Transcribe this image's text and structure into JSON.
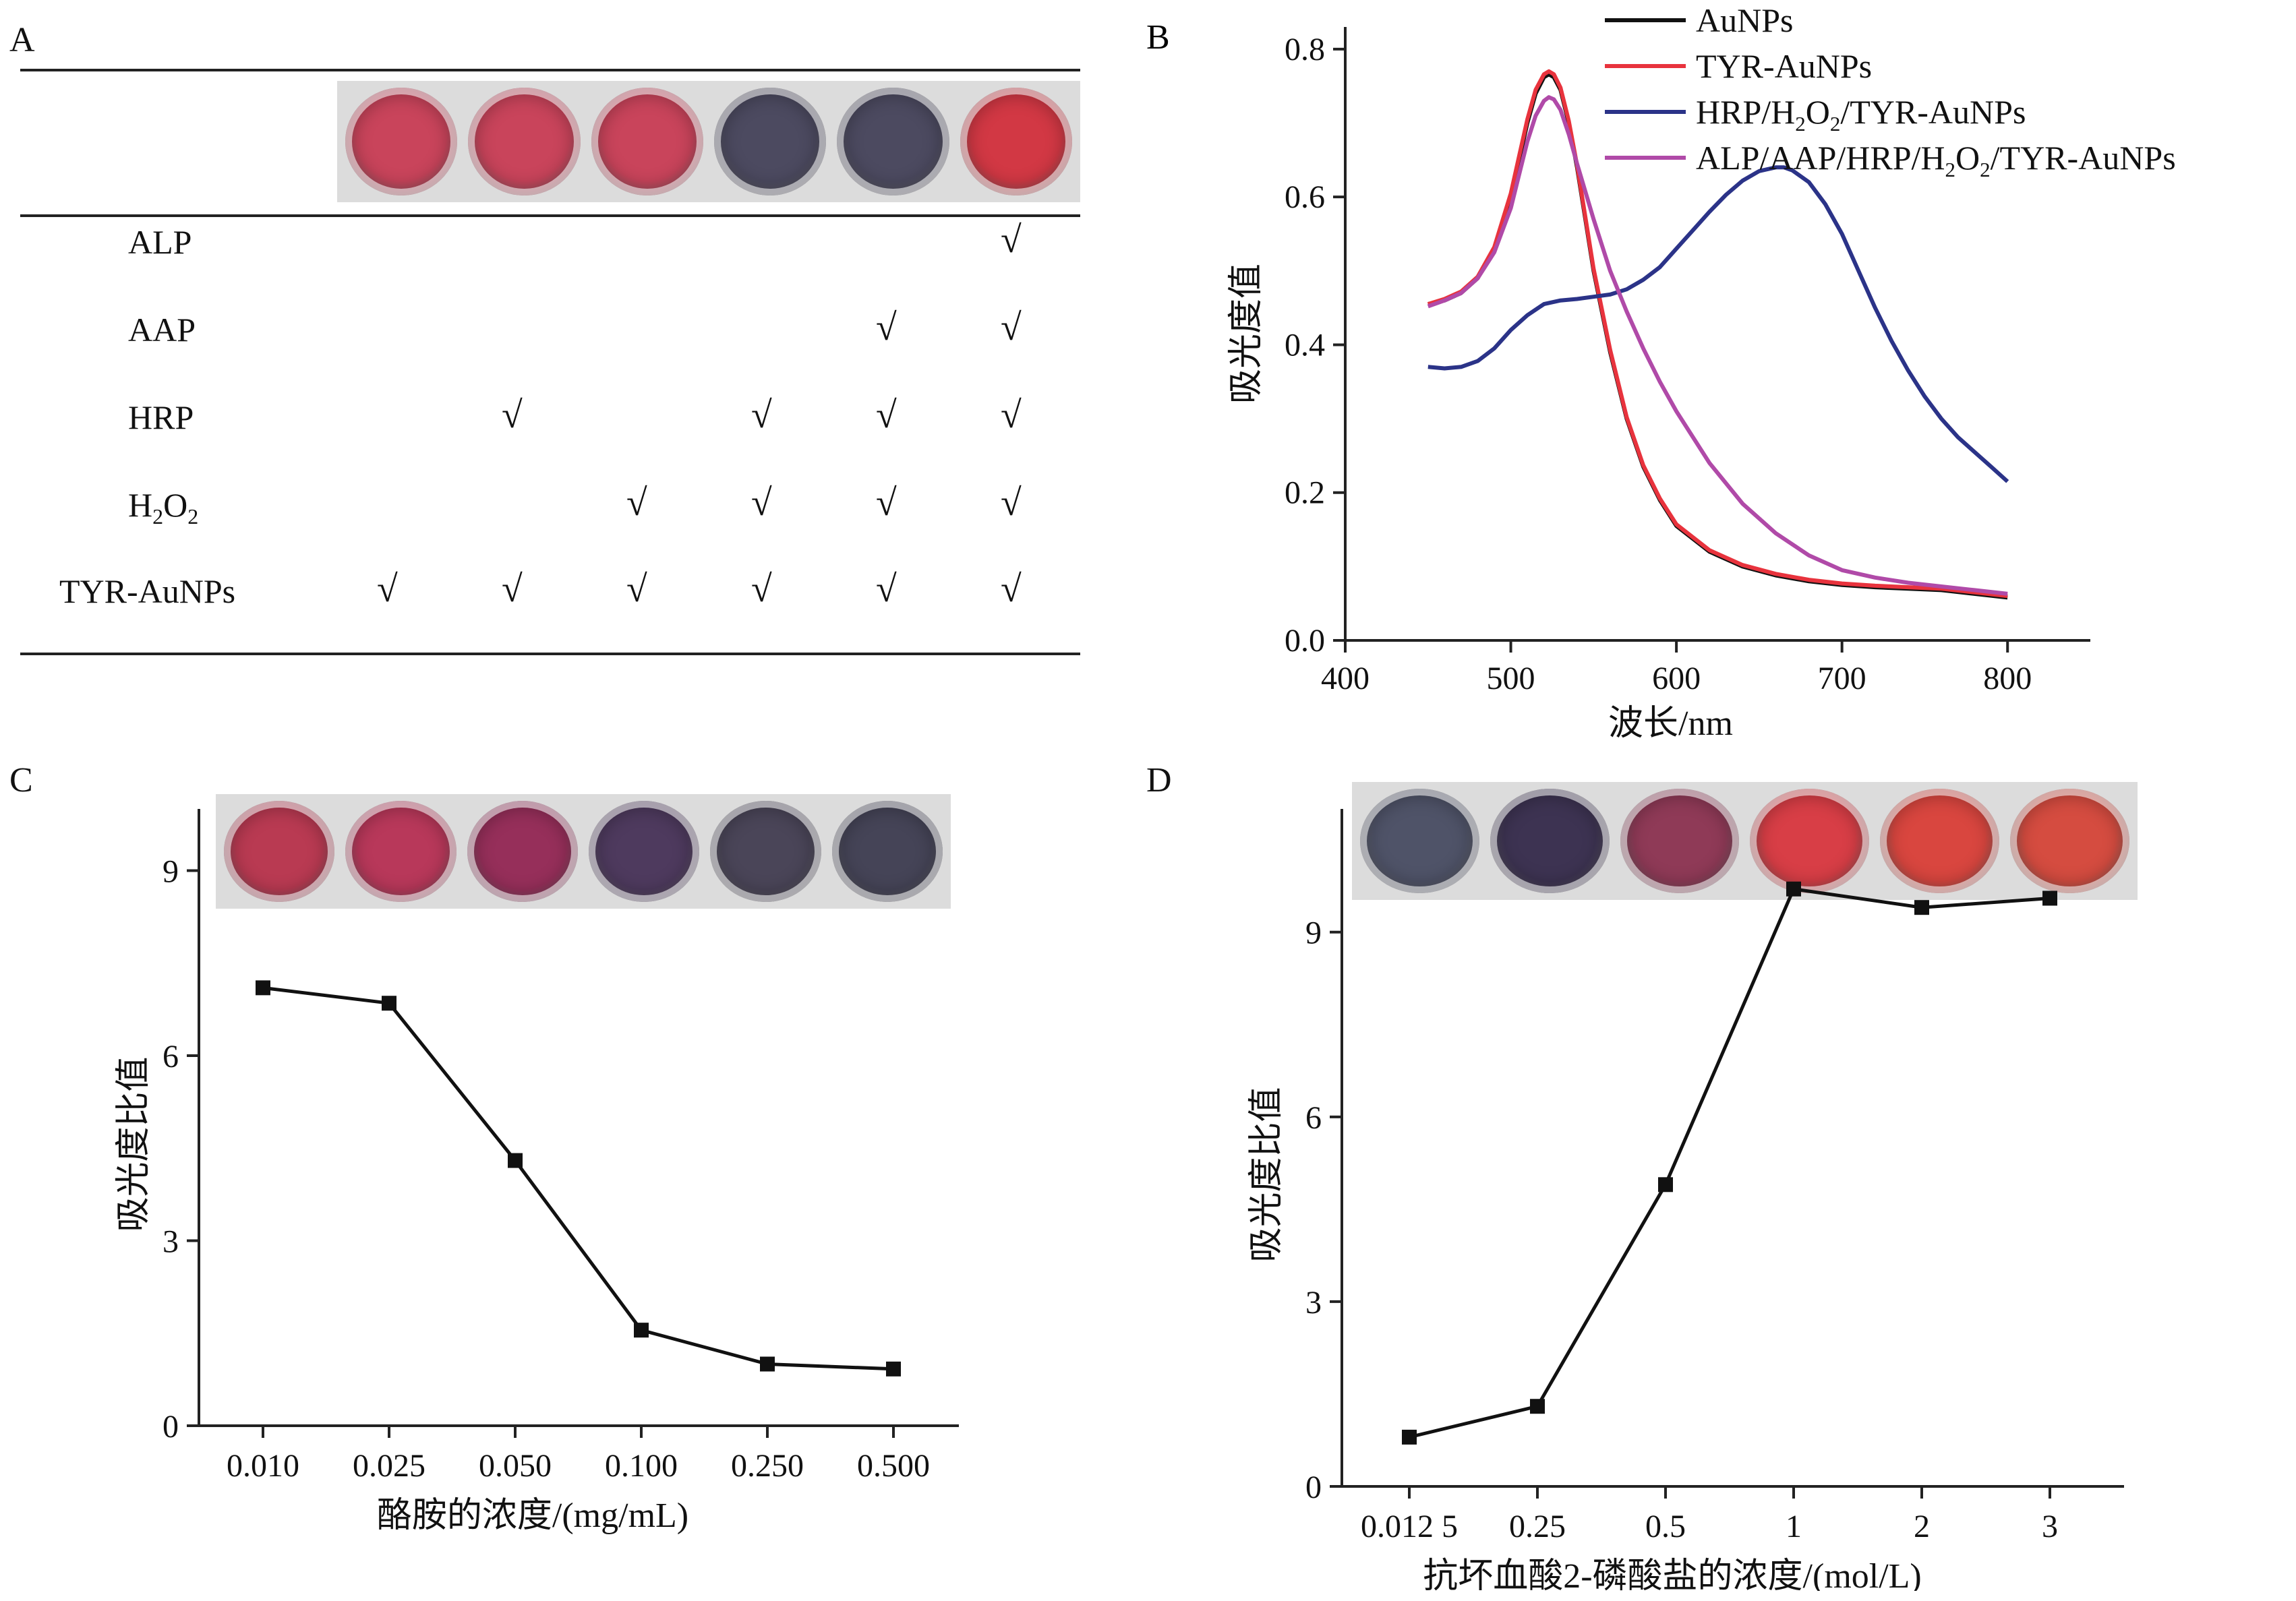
{
  "panel_a": {
    "letter": "A",
    "well_colors": [
      "#c9445b",
      "#c9445b",
      "#c9445b",
      "#4c4a60",
      "#4c4a60",
      "#d23844"
    ],
    "rows": [
      {
        "label": "ALP",
        "checks": [
          false,
          false,
          false,
          false,
          false,
          true
        ]
      },
      {
        "label": "AAP",
        "checks": [
          false,
          false,
          false,
          false,
          true,
          true
        ]
      },
      {
        "label": "HRP",
        "checks": [
          false,
          true,
          false,
          true,
          true,
          true
        ]
      },
      {
        "label_main": "H",
        "label_sub1": "2",
        "label_mid": "O",
        "label_sub2": "2",
        "checks": [
          false,
          false,
          true,
          true,
          true,
          true
        ]
      },
      {
        "label": "TYR-AuNPs",
        "checks": [
          true,
          true,
          true,
          true,
          true,
          true
        ]
      }
    ],
    "check_mark": "√"
  },
  "chart_data": [
    {
      "panel": "B",
      "type": "line",
      "xlabel": "波长/nm",
      "ylabel": "吸光度值",
      "xlim": [
        400,
        850
      ],
      "ylim": [
        0,
        0.83
      ],
      "xticks": [
        "400",
        "500",
        "600",
        "700",
        "800"
      ],
      "yticks": [
        "0.0",
        "0.2",
        "0.4",
        "0.6",
        "0.8"
      ],
      "legend_position": "top-right",
      "series": [
        {
          "name": "AuNPs",
          "color": "#111111",
          "x": [
            450,
            460,
            470,
            480,
            490,
            500,
            505,
            510,
            515,
            520,
            523,
            526,
            530,
            535,
            540,
            545,
            550,
            560,
            570,
            580,
            590,
            600,
            620,
            640,
            660,
            680,
            700,
            720,
            740,
            760,
            780,
            800
          ],
          "y": [
            0.455,
            0.46,
            0.47,
            0.49,
            0.53,
            0.6,
            0.65,
            0.7,
            0.74,
            0.762,
            0.766,
            0.762,
            0.745,
            0.7,
            0.64,
            0.57,
            0.5,
            0.39,
            0.3,
            0.235,
            0.19,
            0.155,
            0.12,
            0.1,
            0.088,
            0.08,
            0.075,
            0.072,
            0.07,
            0.068,
            0.063,
            0.058
          ]
        },
        {
          "name": "TYR-AuNPs",
          "color": "#e8333d",
          "x": [
            450,
            460,
            470,
            480,
            490,
            500,
            505,
            510,
            515,
            520,
            523,
            526,
            530,
            535,
            540,
            545,
            550,
            560,
            570,
            580,
            590,
            600,
            620,
            640,
            660,
            680,
            700,
            720,
            740,
            760,
            780,
            800
          ],
          "y": [
            0.455,
            0.462,
            0.472,
            0.492,
            0.532,
            0.605,
            0.655,
            0.705,
            0.745,
            0.766,
            0.77,
            0.766,
            0.748,
            0.703,
            0.643,
            0.573,
            0.503,
            0.393,
            0.302,
            0.237,
            0.192,
            0.157,
            0.122,
            0.102,
            0.09,
            0.082,
            0.077,
            0.074,
            0.072,
            0.07,
            0.065,
            0.06
          ]
        },
        {
          "name_main": "HRP/H",
          "name_sub1": "2",
          "name_mid": "O",
          "name_sub2": "2",
          "name_end": "/TYR-AuNPs",
          "color": "#2b3388",
          "x": [
            450,
            460,
            470,
            480,
            490,
            500,
            510,
            520,
            530,
            540,
            550,
            560,
            570,
            580,
            590,
            600,
            610,
            620,
            630,
            640,
            650,
            660,
            665,
            670,
            680,
            690,
            700,
            710,
            720,
            730,
            740,
            750,
            760,
            770,
            780,
            790,
            800
          ],
          "y": [
            0.37,
            0.368,
            0.37,
            0.378,
            0.395,
            0.42,
            0.44,
            0.455,
            0.46,
            0.462,
            0.465,
            0.468,
            0.475,
            0.488,
            0.505,
            0.53,
            0.555,
            0.58,
            0.603,
            0.622,
            0.635,
            0.64,
            0.64,
            0.636,
            0.62,
            0.59,
            0.55,
            0.5,
            0.45,
            0.405,
            0.365,
            0.33,
            0.3,
            0.275,
            0.255,
            0.235,
            0.215
          ]
        },
        {
          "name_main": "ALP/AAP/HRP/H",
          "name_sub1": "2",
          "name_mid": "O",
          "name_sub2": "2",
          "name_end": "/TYR-AuNPs",
          "color": "#b04aa8",
          "x": [
            450,
            460,
            470,
            480,
            490,
            500,
            505,
            510,
            515,
            520,
            523,
            526,
            530,
            535,
            540,
            550,
            560,
            570,
            580,
            590,
            600,
            620,
            640,
            660,
            680,
            700,
            720,
            740,
            760,
            780,
            800
          ],
          "y": [
            0.452,
            0.46,
            0.47,
            0.49,
            0.525,
            0.585,
            0.63,
            0.675,
            0.71,
            0.73,
            0.735,
            0.732,
            0.718,
            0.685,
            0.645,
            0.57,
            0.5,
            0.445,
            0.395,
            0.35,
            0.31,
            0.24,
            0.185,
            0.145,
            0.115,
            0.095,
            0.085,
            0.078,
            0.073,
            0.068,
            0.063
          ]
        }
      ]
    },
    {
      "panel": "C",
      "type": "line",
      "xlabel": "酪胺的浓度/(mg/mL)",
      "ylabel": "吸光度比值",
      "categories": [
        "0.010",
        "0.025",
        "0.050",
        "0.100",
        "0.250",
        "0.500"
      ],
      "values": [
        7.1,
        6.85,
        4.3,
        1.55,
        1.0,
        0.92
      ],
      "ylim": [
        0,
        10
      ],
      "yticks": [
        "0",
        "3",
        "6",
        "9"
      ],
      "well_colors": [
        "#b93a52",
        "#b8385a",
        "#962f5a",
        "#4e3a5e",
        "#4a4558",
        "#454457"
      ]
    },
    {
      "panel": "D",
      "type": "line",
      "xlabel": "抗坏血酸2-磷酸盐的浓度/(mol/L)",
      "ylabel": "吸光度比值",
      "categories": [
        "0.012 5",
        "0.25",
        "0.5",
        "1",
        "2",
        "3"
      ],
      "values": [
        0.8,
        1.3,
        4.9,
        9.7,
        9.4,
        9.55
      ],
      "ylim": [
        0,
        11
      ],
      "yticks": [
        "0",
        "3",
        "6",
        "9"
      ],
      "well_colors": [
        "#4f5368",
        "#3d3352",
        "#8f3a57",
        "#d83e46",
        "#d9463f",
        "#d54c40"
      ]
    }
  ],
  "panel_letters": {
    "b": "B",
    "c": "C",
    "d": "D"
  }
}
